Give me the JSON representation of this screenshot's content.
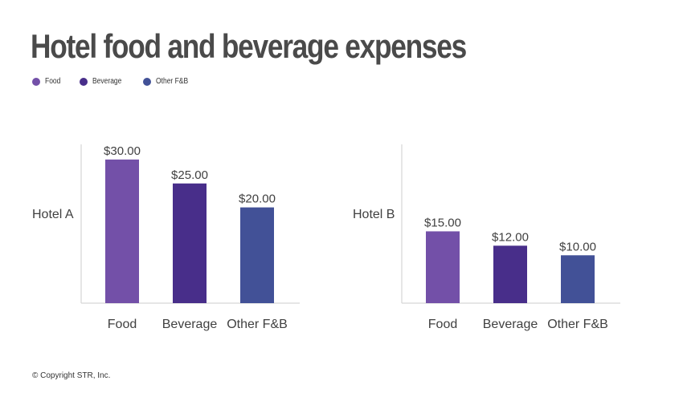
{
  "title": "Hotel food and beverage expenses",
  "copyright": "© Copyright STR, Inc.",
  "legend": [
    {
      "label": "Food",
      "color": "#7350a8"
    },
    {
      "label": "Beverage",
      "color": "#482e8a"
    },
    {
      "label": "Other F&B",
      "color": "#425197"
    }
  ],
  "chart_data": [
    {
      "type": "bar",
      "ylabel": "Hotel A",
      "categories": [
        "Food",
        "Beverage",
        "Other F&B"
      ],
      "values": [
        30,
        25,
        20
      ],
      "value_labels": [
        "$30.00",
        "$25.00",
        "$20.00"
      ],
      "colors": [
        "#7350a8",
        "#482e8a",
        "#425197"
      ],
      "ylim": [
        0,
        30
      ],
      "grid": false
    },
    {
      "type": "bar",
      "ylabel": "Hotel B",
      "categories": [
        "Food",
        "Beverage",
        "Other F&B"
      ],
      "values": [
        15,
        12,
        10
      ],
      "value_labels": [
        "$15.00",
        "$12.00",
        "$10.00"
      ],
      "colors": [
        "#7350a8",
        "#482e8a",
        "#425197"
      ],
      "ylim": [
        0,
        30
      ],
      "grid": false
    }
  ]
}
